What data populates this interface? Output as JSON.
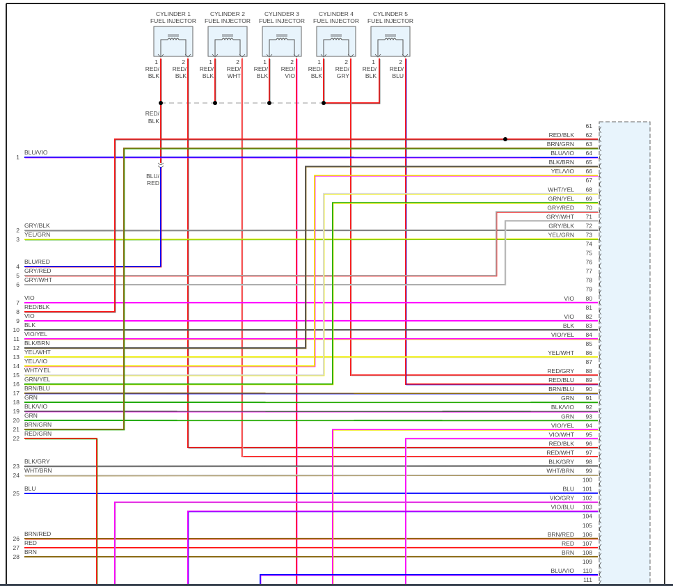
{
  "colors": {
    "RED": "#ff1a1a",
    "BLK": "#555555",
    "BLU": "#0000ff",
    "VIO": "#ff00ff",
    "GRY": "#aaaaaa",
    "YEL": "#f0f000",
    "GRN": "#22aa00",
    "BRN": "#8b6a14",
    "WHT": "#d8d8d8",
    "connector_fill": "#e8f4fc",
    "injector_fill": "#e8f4fc"
  },
  "injectors": [
    {
      "title": [
        "CYLINDER 1",
        "FUEL INJECTOR"
      ],
      "pins": [
        {
          "num": "1",
          "label": [
            "RED/",
            "BLK"
          ]
        },
        {
          "num": "2",
          "label": [
            "RED/",
            "BLK"
          ]
        }
      ]
    },
    {
      "title": [
        "CYLINDER 2",
        "FUEL INJECTOR"
      ],
      "pins": [
        {
          "num": "1",
          "label": [
            "RED/",
            "BLK"
          ]
        },
        {
          "num": "2",
          "label": [
            "RED/",
            "WHT"
          ]
        }
      ]
    },
    {
      "title": [
        "CYLINDER 3",
        "FUEL INJECTOR"
      ],
      "pins": [
        {
          "num": "1",
          "label": [
            "RED/",
            "BLK"
          ]
        },
        {
          "num": "2",
          "label": [
            "RED/",
            "VIO"
          ]
        }
      ]
    },
    {
      "title": [
        "CYLINDER 4",
        "FUEL INJECTOR"
      ],
      "pins": [
        {
          "num": "1",
          "label": [
            "RED/",
            "BLK"
          ]
        },
        {
          "num": "2",
          "label": [
            "RED/",
            "GRY"
          ]
        }
      ]
    },
    {
      "title": [
        "CYLINDER 5",
        "FUEL INJECTOR"
      ],
      "pins": [
        {
          "num": "1",
          "label": [
            "RED/",
            "BLK"
          ]
        },
        {
          "num": "2",
          "label": [
            "RED/",
            "BLU"
          ]
        }
      ]
    }
  ],
  "splice_labels": {
    "upper": [
      "RED/",
      "BLK"
    ],
    "lower": [
      "BLU/",
      "RED"
    ]
  },
  "left_pins": [
    {
      "num": "1",
      "label": "BLU/VIO"
    },
    {
      "num": "2",
      "label": "GRY/BLK"
    },
    {
      "num": "3",
      "label": "YEL/GRN"
    },
    {
      "num": "4",
      "label": "BLU/RED"
    },
    {
      "num": "5",
      "label": "GRY/RED"
    },
    {
      "num": "6",
      "label": "GRY/WHT"
    },
    {
      "num": "7",
      "label": "VIO"
    },
    {
      "num": "8",
      "label": "RED/BLK"
    },
    {
      "num": "9",
      "label": "VIO"
    },
    {
      "num": "10",
      "label": "BLK"
    },
    {
      "num": "11",
      "label": "VIO/YEL"
    },
    {
      "num": "12",
      "label": "BLK/BRN"
    },
    {
      "num": "13",
      "label": "YEL/WHT"
    },
    {
      "num": "14",
      "label": "YEL/VIO"
    },
    {
      "num": "15",
      "label": "WHT/YEL"
    },
    {
      "num": "16",
      "label": "GRN/YEL"
    },
    {
      "num": "17",
      "label": "BRN/BLU"
    },
    {
      "num": "18",
      "label": "GRN"
    },
    {
      "num": "19",
      "label": "BLK/VIO"
    },
    {
      "num": "20",
      "label": "GRN"
    },
    {
      "num": "21",
      "label": "BRN/GRN"
    },
    {
      "num": "22",
      "label": "RED/GRN"
    },
    {
      "num": "23",
      "label": "BLK/GRY"
    },
    {
      "num": "24",
      "label": "WHT/BRN"
    },
    {
      "num": "25",
      "label": "BLU"
    },
    {
      "num": "26",
      "label": "BRN/RED"
    },
    {
      "num": "27",
      "label": "RED"
    },
    {
      "num": "28",
      "label": "BRN"
    }
  ],
  "right_pins": [
    {
      "num": "61",
      "label": ""
    },
    {
      "num": "62",
      "label": "RED/BLK"
    },
    {
      "num": "63",
      "label": "BRN/GRN"
    },
    {
      "num": "64",
      "label": "BLU/VIO"
    },
    {
      "num": "65",
      "label": "BLK/BRN"
    },
    {
      "num": "66",
      "label": "YEL/VIO"
    },
    {
      "num": "67",
      "label": ""
    },
    {
      "num": "68",
      "label": "WHT/YEL"
    },
    {
      "num": "69",
      "label": "GRN/YEL"
    },
    {
      "num": "70",
      "label": "GRY/RED"
    },
    {
      "num": "71",
      "label": "GRY/WHT"
    },
    {
      "num": "72",
      "label": "GRY/BLK"
    },
    {
      "num": "73",
      "label": "YEL/GRN"
    },
    {
      "num": "74",
      "label": ""
    },
    {
      "num": "75",
      "label": ""
    },
    {
      "num": "76",
      "label": ""
    },
    {
      "num": "77",
      "label": ""
    },
    {
      "num": "78",
      "label": ""
    },
    {
      "num": "79",
      "label": ""
    },
    {
      "num": "80",
      "label": "VIO"
    },
    {
      "num": "81",
      "label": ""
    },
    {
      "num": "82",
      "label": "VIO"
    },
    {
      "num": "83",
      "label": "BLK"
    },
    {
      "num": "84",
      "label": "VIO/YEL"
    },
    {
      "num": "85",
      "label": ""
    },
    {
      "num": "86",
      "label": "YEL/WHT"
    },
    {
      "num": "87",
      "label": ""
    },
    {
      "num": "88",
      "label": "RED/GRY"
    },
    {
      "num": "89",
      "label": "RED/BLU"
    },
    {
      "num": "90",
      "label": "BRN/BLU"
    },
    {
      "num": "91",
      "label": "GRN"
    },
    {
      "num": "92",
      "label": "BLK/VIO"
    },
    {
      "num": "93",
      "label": "GRN"
    },
    {
      "num": "94",
      "label": "VIO/YEL"
    },
    {
      "num": "95",
      "label": "VIO/WHT"
    },
    {
      "num": "96",
      "label": "RED/BLK"
    },
    {
      "num": "97",
      "label": "RED/WHT"
    },
    {
      "num": "98",
      "label": "BLK/GRY"
    },
    {
      "num": "99",
      "label": "WHT/BRN"
    },
    {
      "num": "100",
      "label": ""
    },
    {
      "num": "101",
      "label": "BLU"
    },
    {
      "num": "102",
      "label": "VIO/GRY"
    },
    {
      "num": "103",
      "label": "VIO/BLU"
    },
    {
      "num": "104",
      "label": ""
    },
    {
      "num": "105",
      "label": ""
    },
    {
      "num": "106",
      "label": "BRN/RED"
    },
    {
      "num": "107",
      "label": "RED"
    },
    {
      "num": "108",
      "label": "BRN"
    },
    {
      "num": "109",
      "label": ""
    },
    {
      "num": "110",
      "label": "BLU/VIO"
    },
    {
      "num": "111",
      "label": ""
    }
  ]
}
